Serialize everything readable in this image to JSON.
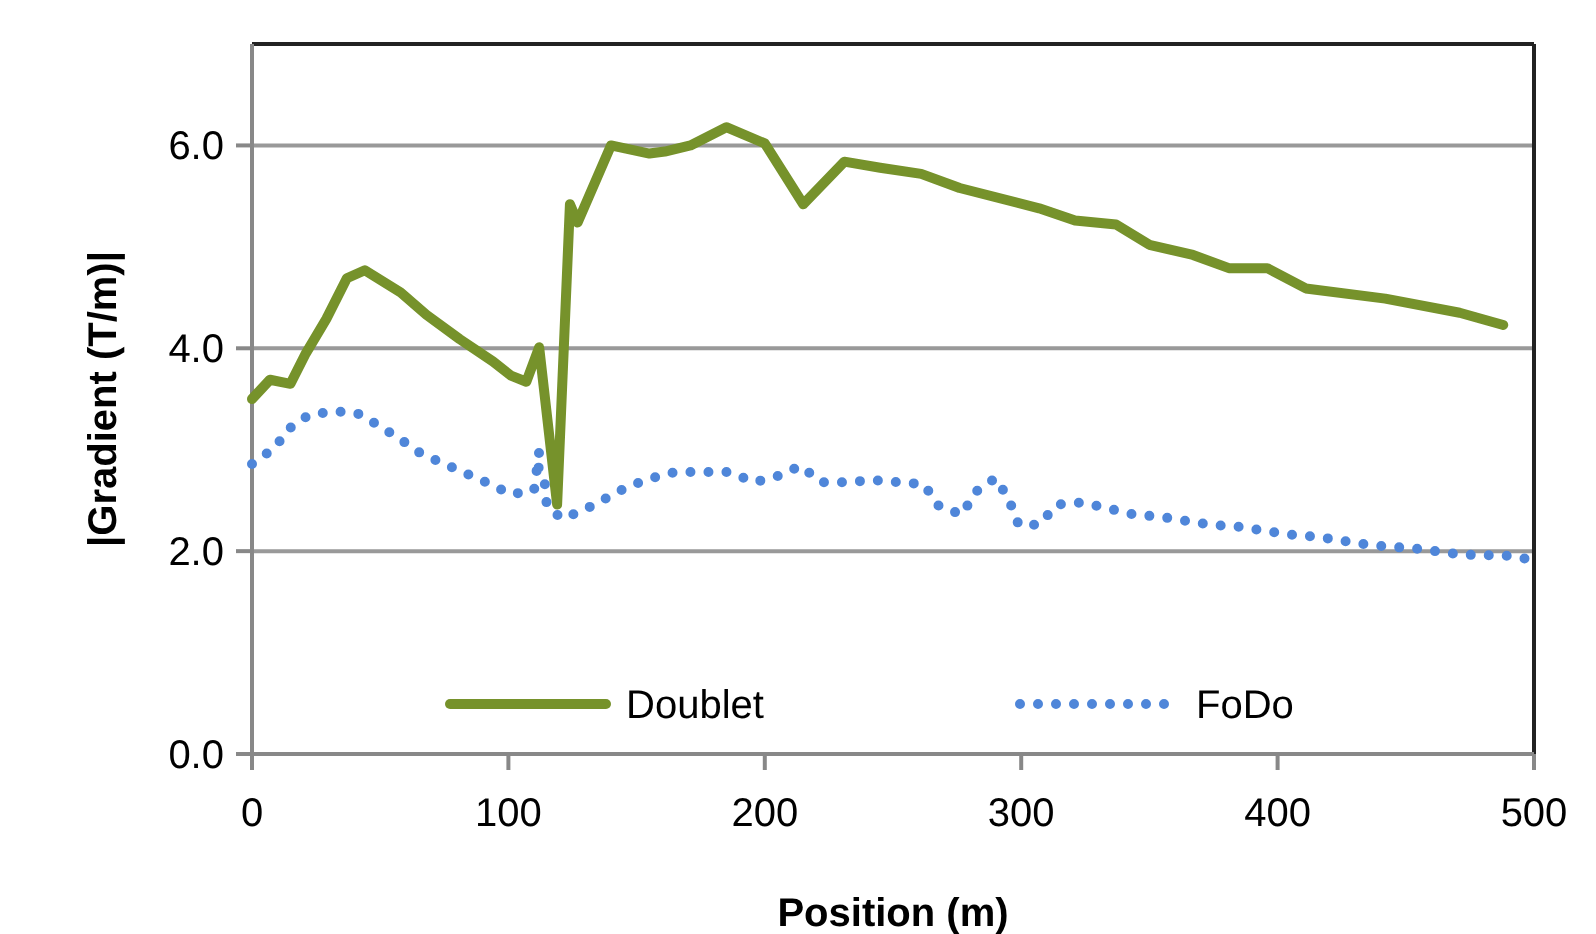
{
  "chart_data": {
    "type": "line",
    "xlabel": "Position (m)",
    "ylabel": "|Gradient (T/m)|",
    "xlim": [
      0,
      500
    ],
    "xticks": [
      0,
      100,
      200,
      300,
      400,
      500
    ],
    "ylim": [
      0,
      7
    ],
    "yticks": [
      {
        "value": 0,
        "label": "0.0"
      },
      {
        "value": 2,
        "label": "2.0"
      },
      {
        "value": 4,
        "label": "4.0"
      },
      {
        "value": 6,
        "label": "6.0"
      }
    ],
    "grid": "y",
    "legend": "bottom",
    "series": [
      {
        "name": "Doublet",
        "color": "#76922b",
        "line_style": "solid",
        "x": [
          0,
          7,
          15,
          21,
          29,
          37,
          44,
          58,
          68,
          81,
          94,
          101,
          107,
          112,
          119,
          124,
          127,
          140,
          155,
          161,
          171,
          185,
          200,
          215,
          231,
          245,
          261,
          276,
          307,
          321,
          337,
          350,
          367,
          381,
          396,
          411,
          442,
          471,
          488
        ],
        "values": [
          3.5,
          3.69,
          3.65,
          3.95,
          4.29,
          4.69,
          4.77,
          4.55,
          4.33,
          4.09,
          3.87,
          3.73,
          3.67,
          4.01,
          2.46,
          5.42,
          5.24,
          6.0,
          5.92,
          5.94,
          6.0,
          6.18,
          6.02,
          5.42,
          5.84,
          5.78,
          5.72,
          5.58,
          5.38,
          5.26,
          5.22,
          5.02,
          4.92,
          4.79,
          4.79,
          4.59,
          4.49,
          4.35,
          4.23
        ]
      },
      {
        "name": "FoDo",
        "color": "#4f86d9",
        "line_style": "dotted",
        "x": [
          0,
          9,
          14,
          22,
          32,
          41,
          50,
          58,
          66,
          75,
          84,
          93,
          101,
          110,
          112,
          111,
          114,
          115,
          121,
          129,
          138,
          147,
          156,
          165,
          176,
          186,
          196,
          205,
          214,
          222,
          232,
          242,
          252,
          262,
          268,
          277,
          282,
          290,
          295,
          299,
          307,
          314,
          324,
          334,
          344,
          354,
          364,
          374,
          385,
          395,
          406,
          416,
          426,
          436,
          446,
          456,
          467,
          477,
          488,
          498
        ],
        "values": [
          2.86,
          3.02,
          3.2,
          3.34,
          3.38,
          3.36,
          3.23,
          3.1,
          2.96,
          2.86,
          2.76,
          2.66,
          2.56,
          2.6,
          2.98,
          2.86,
          2.72,
          2.44,
          2.32,
          2.4,
          2.52,
          2.64,
          2.72,
          2.78,
          2.78,
          2.78,
          2.68,
          2.74,
          2.84,
          2.68,
          2.68,
          2.7,
          2.68,
          2.66,
          2.44,
          2.36,
          2.58,
          2.72,
          2.52,
          2.26,
          2.26,
          2.46,
          2.48,
          2.42,
          2.36,
          2.34,
          2.3,
          2.26,
          2.24,
          2.2,
          2.16,
          2.14,
          2.1,
          2.06,
          2.04,
          2.02,
          1.98,
          1.96,
          1.96,
          1.92
        ]
      }
    ]
  }
}
